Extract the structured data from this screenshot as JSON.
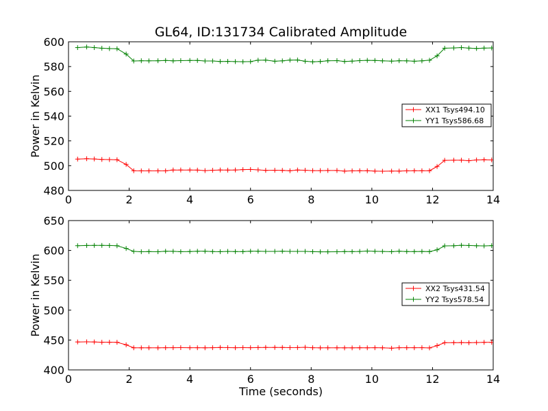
{
  "title": "GL64, ID:131734 Calibrated Amplitude",
  "chart_data": [
    {
      "type": "line",
      "ylabel": "Power in Kelvin",
      "xlabel": "",
      "xlim": [
        0,
        14
      ],
      "ylim": [
        480,
        600
      ],
      "xticks": [
        0,
        2,
        4,
        6,
        8,
        10,
        12,
        14
      ],
      "yticks": [
        480,
        500,
        520,
        540,
        560,
        580,
        600
      ],
      "legend_position": "right",
      "grid": false,
      "x": [
        0.3,
        0.6,
        0.85,
        1.1,
        1.35,
        1.6,
        1.9,
        2.15,
        2.4,
        2.65,
        2.95,
        3.2,
        3.45,
        3.7,
        4.0,
        4.25,
        4.5,
        4.75,
        5.0,
        5.25,
        5.5,
        5.75,
        6.0,
        6.25,
        6.5,
        6.8,
        7.05,
        7.3,
        7.55,
        7.8,
        8.05,
        8.3,
        8.55,
        8.85,
        9.1,
        9.35,
        9.6,
        9.85,
        10.1,
        10.35,
        10.65,
        10.9,
        11.15,
        11.4,
        11.65,
        11.9,
        12.15,
        12.4,
        12.7,
        12.95,
        13.2,
        13.45,
        13.7,
        13.95
      ],
      "series": [
        {
          "name": "XX1 Tsys494.10",
          "color": "#ff0000",
          "values": [
            505.3,
            505.6,
            505.4,
            505.0,
            504.9,
            504.8,
            501.0,
            495.9,
            495.8,
            495.8,
            495.8,
            495.8,
            496.5,
            496.5,
            496.5,
            496.4,
            496.0,
            496.3,
            496.5,
            496.4,
            496.5,
            496.8,
            496.9,
            496.6,
            496.2,
            496.3,
            496.2,
            495.9,
            496.5,
            496.3,
            496.0,
            496.0,
            496.1,
            496.1,
            495.6,
            495.8,
            495.9,
            495.9,
            495.6,
            495.5,
            495.6,
            495.6,
            495.8,
            495.9,
            495.9,
            495.9,
            499.3,
            504.3,
            504.4,
            504.4,
            504.0,
            504.6,
            504.8,
            504.6
          ]
        },
        {
          "name": "YY1 Tsys586.68",
          "color": "#008000",
          "values": [
            595.3,
            595.8,
            595.3,
            594.8,
            594.5,
            594.4,
            590.1,
            584.5,
            584.7,
            584.6,
            584.7,
            584.9,
            584.6,
            584.8,
            584.9,
            584.9,
            584.5,
            584.5,
            584.1,
            584.2,
            584.0,
            583.9,
            584.0,
            585.1,
            585.2,
            584.3,
            584.6,
            585.2,
            585.3,
            584.3,
            583.8,
            584.1,
            584.7,
            584.8,
            584.1,
            584.4,
            584.8,
            585.0,
            584.9,
            584.6,
            584.4,
            584.7,
            584.6,
            584.3,
            584.6,
            585.1,
            588.6,
            594.8,
            595.0,
            595.3,
            594.9,
            594.6,
            594.9,
            595.0
          ]
        }
      ]
    },
    {
      "type": "line",
      "ylabel": "Power in Kelvin",
      "xlabel": "Time (seconds)",
      "xlim": [
        0,
        14
      ],
      "ylim": [
        400,
        650
      ],
      "xticks": [
        0,
        2,
        4,
        6,
        8,
        10,
        12,
        14
      ],
      "yticks": [
        400,
        450,
        500,
        550,
        600,
        650
      ],
      "legend_position": "right",
      "grid": false,
      "x": [
        0.3,
        0.6,
        0.85,
        1.1,
        1.35,
        1.6,
        1.9,
        2.15,
        2.4,
        2.65,
        2.95,
        3.2,
        3.45,
        3.7,
        4.0,
        4.25,
        4.5,
        4.75,
        5.0,
        5.25,
        5.5,
        5.75,
        6.0,
        6.25,
        6.5,
        6.8,
        7.05,
        7.3,
        7.55,
        7.8,
        8.05,
        8.3,
        8.55,
        8.85,
        9.1,
        9.35,
        9.6,
        9.85,
        10.1,
        10.35,
        10.65,
        10.9,
        11.15,
        11.4,
        11.65,
        11.9,
        12.15,
        12.4,
        12.7,
        12.95,
        13.2,
        13.45,
        13.7,
        13.95
      ],
      "series": [
        {
          "name": "XX2 Tsys431.54",
          "color": "#ff0000",
          "values": [
            446.8,
            447.0,
            446.8,
            446.3,
            446.3,
            446.2,
            442.0,
            437.0,
            437.0,
            437.0,
            436.9,
            437.1,
            437.2,
            437.3,
            437.1,
            437.1,
            437.0,
            437.2,
            437.5,
            437.3,
            437.1,
            437.3,
            437.2,
            437.4,
            437.6,
            437.6,
            437.5,
            437.3,
            437.4,
            437.8,
            437.1,
            436.9,
            437.0,
            437.0,
            436.9,
            436.9,
            437.1,
            437.0,
            437.1,
            437.0,
            436.3,
            437.1,
            437.1,
            437.1,
            437.2,
            436.8,
            440.6,
            445.5,
            445.6,
            445.8,
            445.5,
            445.8,
            446.1,
            446.1
          ]
        },
        {
          "name": "YY2 Tsys578.54",
          "color": "#008000",
          "values": [
            607.9,
            608.3,
            608.4,
            608.4,
            608.2,
            607.8,
            603.3,
            598.4,
            597.8,
            598.1,
            597.8,
            598.6,
            598.5,
            597.9,
            598.2,
            598.6,
            598.6,
            598.1,
            597.9,
            598.4,
            598.1,
            598.0,
            598.6,
            598.6,
            598.4,
            598.4,
            598.6,
            598.4,
            598.4,
            598.4,
            597.9,
            597.7,
            597.7,
            597.8,
            598.1,
            598.0,
            598.3,
            599.0,
            598.5,
            598.3,
            597.9,
            598.7,
            598.2,
            598.1,
            598.3,
            598.0,
            601.0,
            607.6,
            607.8,
            608.6,
            608.2,
            607.8,
            607.6,
            608.0
          ]
        }
      ]
    }
  ]
}
